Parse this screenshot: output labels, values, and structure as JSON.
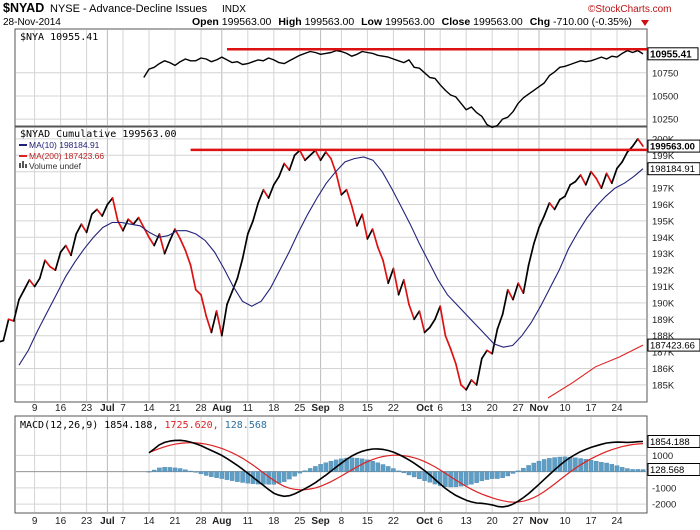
{
  "header": {
    "symbol": "$NYAD",
    "description": "NYSE - Advance-Decline Issues",
    "exchange": "INDX",
    "date": "28-Nov-2014",
    "open_label": "Open",
    "open": "199563.00",
    "high_label": "High",
    "high": "199563.00",
    "low_label": "Low",
    "low": "199563.00",
    "close_label": "Close",
    "close": "199563.00",
    "chg_label": "Chg",
    "chg": "-710.00 (-0.35%)",
    "brand": "©StockCharts.com"
  },
  "colors": {
    "price": "#000000",
    "red": "#dd1111",
    "ma10": "#22227a",
    "ma200": "#dd2222",
    "histogram": "#5f9ec4",
    "grid": "#d4d4d4",
    "axis_text": "#222222"
  },
  "chart_data": [
    {
      "type": "line",
      "title": "$NYA 10955.41",
      "ylim": [
        10240,
        11040
      ],
      "yticks": [
        10250,
        10500,
        10750
      ],
      "current_value_label": "10955.41",
      "resistance_line": {
        "value": 11005,
        "from_index": 40,
        "color": "#dd1111"
      },
      "series": [
        {
          "name": "$NYA",
          "color": "#000000",
          "values": [
            10700,
            10790,
            10810,
            10850,
            10880,
            10860,
            10830,
            10870,
            10900,
            10880,
            10880,
            10910,
            10900,
            10870,
            10890,
            10920,
            10890,
            10860,
            10870,
            10840,
            10850,
            10870,
            10890,
            10880,
            10910,
            10890,
            10860,
            10850,
            10880,
            10910,
            10940,
            10960,
            10980,
            10970,
            10950,
            10960,
            10970,
            10990,
            10980,
            10960,
            10930,
            10950,
            10980,
            10970,
            10960,
            10940,
            10930,
            10920,
            10900,
            10880,
            10860,
            10890,
            10810,
            10800,
            10750,
            10700,
            10690,
            10620,
            10560,
            10510,
            10490,
            10420,
            10350,
            10380,
            10320,
            10280,
            10190,
            10160,
            10180,
            10250,
            10270,
            10330,
            10420,
            10480,
            10520,
            10560,
            10600,
            10640,
            10720,
            10760,
            10810,
            10820,
            10840,
            10860,
            10880,
            10870,
            10880,
            10900,
            10920,
            10900,
            10930,
            10920,
            10960,
            10990,
            10970,
            10990,
            10955
          ]
        }
      ]
    },
    {
      "type": "line",
      "title": "$NYAD Cumulative 199563.00",
      "legend": [
        {
          "label": "MA(10) 198184.91",
          "color": "#22227a"
        },
        {
          "label": "MA(200) 187423.66",
          "color": "#dd2222"
        },
        {
          "label": "Volume undef",
          "color": "#555555",
          "marker": "bars"
        }
      ],
      "ylim": [
        184200,
        200300
      ],
      "yticks": [
        185000,
        186000,
        187000,
        188000,
        189000,
        190000,
        191000,
        192000,
        193000,
        194000,
        195000,
        196000,
        197000,
        198000,
        199000,
        200000
      ],
      "ytick_labels": [
        "185K",
        "186K",
        "187K",
        "188K",
        "189K",
        "190K",
        "191K",
        "192K",
        "193K",
        "194K",
        "195K",
        "196K",
        "197K",
        "198K",
        "199K",
        "200K"
      ],
      "value_labels": [
        {
          "text": "199563.00",
          "value": 199563,
          "style": "bold-box"
        },
        {
          "text": "198184.91",
          "value": 198184.91,
          "style": "box"
        },
        {
          "text": "187423.66",
          "value": 187423.66,
          "style": "box"
        }
      ],
      "resistance_line": {
        "value": 199330,
        "from_index": 33,
        "color": "#dd1111"
      },
      "series": [
        {
          "name": "$NYAD Cumulative",
          "color": "#000000",
          "red_down_days": true,
          "values": [
            187600,
            187700,
            189000,
            188900,
            190200,
            190800,
            191400,
            191000,
            191500,
            192600,
            192200,
            192000,
            193100,
            193500,
            192900,
            194200,
            194800,
            194300,
            195400,
            195700,
            195300,
            196000,
            196400,
            195000,
            194400,
            195100,
            194800,
            195200,
            194600,
            194000,
            193500,
            194200,
            193000,
            193800,
            194500,
            193900,
            193200,
            192300,
            190800,
            190500,
            189200,
            188200,
            189500,
            188000,
            189900,
            190700,
            191500,
            192700,
            194200,
            195000,
            196100,
            196900,
            196400,
            197200,
            197700,
            198500,
            198100,
            199000,
            199300,
            198700,
            199000,
            199300,
            198700,
            199200,
            198800,
            197900,
            196600,
            196900,
            195900,
            194700,
            195400,
            193900,
            194500,
            193400,
            192600,
            191200,
            192100,
            190500,
            191400,
            189900,
            189000,
            189500,
            188200,
            188500,
            189000,
            189800,
            188000,
            187200,
            186300,
            185000,
            184700,
            185300,
            185000,
            186600,
            187100,
            186900,
            188400,
            189300,
            190800,
            190200,
            191200,
            190600,
            192300,
            193600,
            194600,
            195300,
            196100,
            195700,
            196300,
            196500,
            197200,
            197400,
            197800,
            197200,
            198000,
            197600,
            197000,
            197900,
            197300,
            198200,
            198600,
            199200,
            199550,
            200000,
            199563
          ]
        },
        {
          "name": "MA(10)",
          "color": "#22227a",
          "values": [
            186200,
            187100,
            188300,
            189400,
            190500,
            191600,
            192500,
            193300,
            194000,
            194600,
            194900,
            194900,
            194800,
            194700,
            194300,
            194000,
            194100,
            194400,
            194400,
            194200,
            193800,
            193100,
            192100,
            191000,
            190100,
            189800,
            190100,
            190900,
            192000,
            193100,
            194300,
            195400,
            196400,
            197300,
            198000,
            198600,
            198800,
            198900,
            198700,
            198000,
            197000,
            195900,
            194800,
            193600,
            192500,
            191400,
            190500,
            189900,
            189300,
            188700,
            188100,
            187500,
            187300,
            187400,
            188000,
            188800,
            189800,
            190900,
            192000,
            193300,
            194300,
            195200,
            195900,
            196500,
            197000,
            197300,
            197700,
            198184.91
          ]
        },
        {
          "name": "MA(200)",
          "color": "#dd2222",
          "values": [
            184200,
            185100,
            186100,
            186700,
            187423.66
          ]
        }
      ]
    },
    {
      "type": "line",
      "title": "MACD(12,26,9) 1854.188, 1725.620, 128.568",
      "title_parts": [
        {
          "text": "MACD(12,26,9) 1854.188,",
          "color": "#000000"
        },
        {
          "text": "1725.620,",
          "color": "#dd2222"
        },
        {
          "text": "128.568",
          "color": "#2e6f9e"
        }
      ],
      "ylim": [
        -2300,
        2500
      ],
      "yticks": [
        -2000,
        -1000,
        0,
        1000
      ],
      "ytick_labels": [
        "-2000",
        "-1000",
        "0",
        "1000"
      ],
      "value_labels": [
        {
          "text": "1854.188",
          "value": 1854.188,
          "style": "box"
        },
        {
          "text": "128.568",
          "value": 128.568,
          "style": "box"
        }
      ],
      "series": [
        {
          "name": "MACD",
          "color": "#000000",
          "values": [
            1150,
            1400,
            1650,
            1800,
            1880,
            1920,
            1930,
            1890,
            1820,
            1720,
            1600,
            1450,
            1300,
            1150,
            1000,
            800,
            600,
            380,
            150,
            -100,
            -350,
            -600,
            -850,
            -1100,
            -1330,
            -1450,
            -1520,
            -1480,
            -1370,
            -1220,
            -1050,
            -870,
            -680,
            -450,
            -220,
            30,
            280,
            520,
            760,
            960,
            1120,
            1250,
            1340,
            1390,
            1400,
            1370,
            1300,
            1200,
            1060,
            900,
            720,
            520,
            300,
            60,
            -200,
            -480,
            -760,
            -1030,
            -1260,
            -1460,
            -1620,
            -1760,
            -1860,
            -1930,
            -1950,
            -1990,
            -2050,
            -2140,
            -2170,
            -2120,
            -2000,
            -1820,
            -1600,
            -1350,
            -1070,
            -780,
            -480,
            -180,
            110,
            390,
            650,
            870,
            1060,
            1230,
            1370,
            1490,
            1590,
            1680,
            1760,
            1800,
            1820,
            1810,
            1800,
            1810,
            1840,
            1854.188
          ]
        },
        {
          "name": "Signal",
          "color": "#dd2222",
          "values": [
            1180,
            1300,
            1420,
            1530,
            1620,
            1690,
            1740,
            1770,
            1780,
            1770,
            1740,
            1690,
            1620,
            1530,
            1430,
            1300,
            1160,
            1000,
            820,
            620,
            400,
            170,
            -70,
            -310,
            -540,
            -740,
            -900,
            -1020,
            -1090,
            -1120,
            -1110,
            -1070,
            -1000,
            -900,
            -770,
            -620,
            -450,
            -270,
            -80,
            110,
            290,
            460,
            610,
            740,
            850,
            930,
            980,
            1010,
            1010,
            980,
            930,
            850,
            750,
            620,
            460,
            290,
            100,
            -100,
            -310,
            -520,
            -720,
            -910,
            -1080,
            -1240,
            -1380,
            -1500,
            -1610,
            -1710,
            -1790,
            -1850,
            -1880,
            -1870,
            -1820,
            -1730,
            -1600,
            -1430,
            -1230,
            -1000,
            -760,
            -510,
            -260,
            -20,
            210,
            420,
            610,
            790,
            950,
            1100,
            1230,
            1350,
            1450,
            1540,
            1610,
            1670,
            1700,
            1725.62
          ]
        },
        {
          "name": "Histogram",
          "color": "#5f9ec4",
          "style": "bars",
          "values": [
            -30,
            100,
            230,
            270,
            260,
            230,
            190,
            120,
            40,
            -50,
            -140,
            -240,
            -320,
            -380,
            -430,
            -500,
            -560,
            -620,
            -670,
            -720,
            -750,
            -770,
            -780,
            -790,
            -790,
            -710,
            -620,
            -460,
            -280,
            -100,
            60,
            200,
            320,
            450,
            550,
            650,
            730,
            790,
            840,
            850,
            830,
            790,
            730,
            650,
            550,
            440,
            320,
            190,
            50,
            -80,
            -210,
            -330,
            -450,
            -560,
            -660,
            -770,
            -860,
            -930,
            -950,
            -940,
            -900,
            -850,
            -780,
            -690,
            -570,
            -490,
            -440,
            -430,
            -380,
            -270,
            -120,
            50,
            220,
            380,
            530,
            650,
            750,
            820,
            870,
            900,
            910,
            890,
            850,
            810,
            760,
            700,
            640,
            580,
            530,
            450,
            370,
            270,
            190,
            140,
            140,
            128.568
          ]
        }
      ]
    }
  ],
  "x_axis": {
    "labels": [
      {
        "text": "9",
        "index": 3
      },
      {
        "text": "16",
        "index": 8
      },
      {
        "text": "23",
        "index": 13
      },
      {
        "text": "Jul",
        "index": 17,
        "bold": true,
        "gridline": true
      },
      {
        "text": "7",
        "index": 20
      },
      {
        "text": "14",
        "index": 25
      },
      {
        "text": "21",
        "index": 30
      },
      {
        "text": "28",
        "index": 35
      },
      {
        "text": "Aug",
        "index": 39,
        "bold": true,
        "gridline": true
      },
      {
        "text": "11",
        "index": 44
      },
      {
        "text": "18",
        "index": 49
      },
      {
        "text": "25",
        "index": 54
      },
      {
        "text": "Sep",
        "index": 58,
        "bold": true,
        "gridline": true
      },
      {
        "text": "8",
        "index": 62
      },
      {
        "text": "15",
        "index": 67
      },
      {
        "text": "22",
        "index": 72
      },
      {
        "text": "Oct",
        "index": 78,
        "bold": true,
        "gridline": true
      },
      {
        "text": "6",
        "index": 81
      },
      {
        "text": "13",
        "index": 86
      },
      {
        "text": "20",
        "index": 91
      },
      {
        "text": "27",
        "index": 96
      },
      {
        "text": "Nov",
        "index": 100,
        "bold": true,
        "gridline": true
      },
      {
        "text": "10",
        "index": 105
      },
      {
        "text": "17",
        "index": 110
      },
      {
        "text": "24",
        "index": 115
      }
    ],
    "total_points": 121
  }
}
